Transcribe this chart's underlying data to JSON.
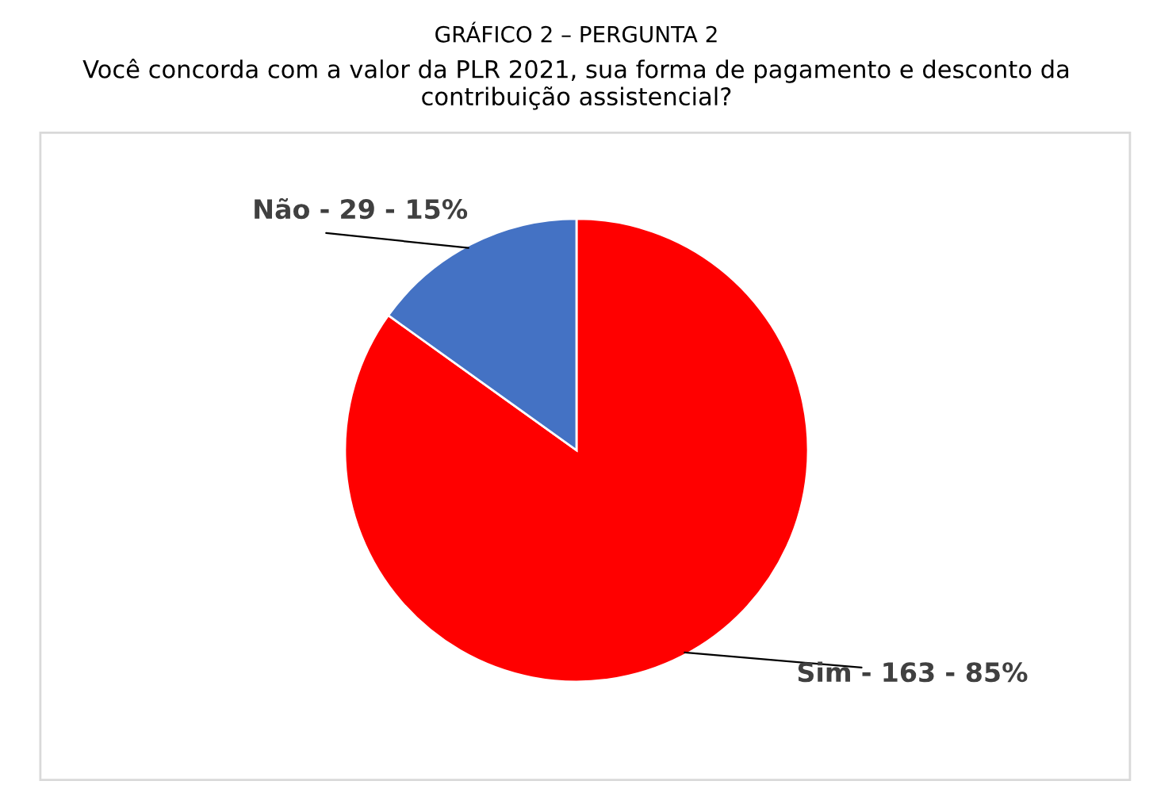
{
  "chart_data": {
    "type": "pie",
    "title": "GRÁFICO 2 – PERGUNTA 2",
    "subtitle": "Você concorda com a valor da PLR 2021, sua forma de pagamento e desconto da\ncontribuição assistencial?",
    "categories": [
      "Sim",
      "Não"
    ],
    "values": [
      163,
      29
    ],
    "colors": [
      "#ff0000",
      "#4472c4"
    ],
    "data_labels": true,
    "annotations": [
      "-",
      "- 85%",
      "-",
      "- 15%"
    ]
  }
}
